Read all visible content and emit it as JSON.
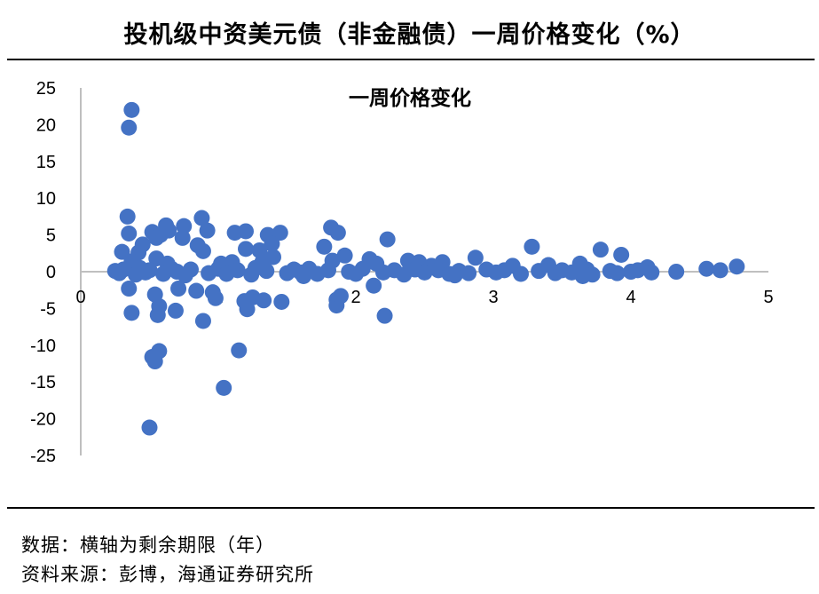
{
  "header": {
    "title": "投机级中资美元债（非金融债）一周价格变化（%）"
  },
  "footer": {
    "note": "数据：横轴为剩余期限（年）",
    "source": "资料来源：彭博，海通证券研究所"
  },
  "chart_data": {
    "type": "scatter",
    "title": "一周价格变化",
    "xlabel": "",
    "ylabel": "",
    "xlim": [
      0,
      5
    ],
    "ylim": [
      -25,
      25
    ],
    "x_ticks": [
      0,
      1,
      2,
      3,
      4,
      5
    ],
    "y_ticks": [
      25,
      20,
      15,
      10,
      5,
      0,
      -5,
      -10,
      -15,
      -20,
      -25
    ],
    "grid": false,
    "legend": "none",
    "marker_color": "#4472C4",
    "axis_color": "#BFBFBF",
    "points": [
      [
        0.37,
        22.0
      ],
      [
        0.35,
        19.6
      ],
      [
        0.34,
        7.5
      ],
      [
        0.35,
        5.2
      ],
      [
        0.52,
        5.4
      ],
      [
        0.58,
        5.0
      ],
      [
        0.55,
        4.6
      ],
      [
        0.62,
        6.3
      ],
      [
        0.64,
        5.6
      ],
      [
        0.75,
        6.2
      ],
      [
        0.74,
        4.6
      ],
      [
        0.88,
        7.3
      ],
      [
        0.92,
        5.6
      ],
      [
        0.85,
        3.6
      ],
      [
        0.89,
        2.8
      ],
      [
        0.55,
        1.8
      ],
      [
        0.45,
        3.7
      ],
      [
        0.42,
        2.6
      ],
      [
        0.3,
        2.7
      ],
      [
        0.37,
        1.4
      ],
      [
        0.63,
        1.1
      ],
      [
        1.12,
        5.3
      ],
      [
        1.2,
        5.5
      ],
      [
        1.36,
        5.0
      ],
      [
        1.45,
        5.3
      ],
      [
        1.39,
        3.8
      ],
      [
        1.3,
        2.9
      ],
      [
        1.2,
        3.1
      ],
      [
        1.4,
        2.0
      ],
      [
        1.32,
        1.3
      ],
      [
        1.1,
        1.3
      ],
      [
        1.02,
        1.1
      ],
      [
        1.77,
        3.4
      ],
      [
        1.82,
        6.0
      ],
      [
        1.87,
        5.3
      ],
      [
        1.92,
        2.2
      ],
      [
        1.83,
        1.5
      ],
      [
        2.1,
        1.7
      ],
      [
        2.23,
        4.4
      ],
      [
        2.15,
        1.1
      ],
      [
        2.38,
        1.5
      ],
      [
        2.46,
        1.3
      ],
      [
        2.55,
        0.8
      ],
      [
        2.63,
        1.3
      ],
      [
        2.87,
        1.9
      ],
      [
        3.28,
        3.4
      ],
      [
        3.14,
        0.8
      ],
      [
        3.4,
        0.9
      ],
      [
        3.63,
        1.1
      ],
      [
        3.78,
        3.0
      ],
      [
        3.93,
        2.3
      ],
      [
        4.12,
        0.6
      ],
      [
        4.55,
        0.4
      ],
      [
        4.65,
        0.2
      ],
      [
        4.77,
        0.7
      ],
      [
        0.35,
        -2.3
      ],
      [
        0.37,
        -5.6
      ],
      [
        0.54,
        -3.1
      ],
      [
        0.57,
        -4.7
      ],
      [
        0.56,
        -5.9
      ],
      [
        0.69,
        -5.3
      ],
      [
        0.71,
        -2.3
      ],
      [
        0.84,
        -2.6
      ],
      [
        0.89,
        -6.7
      ],
      [
        0.96,
        -2.8
      ],
      [
        0.98,
        -3.6
      ],
      [
        1.19,
        -4.0
      ],
      [
        1.21,
        -5.1
      ],
      [
        1.25,
        -3.5
      ],
      [
        1.33,
        -3.9
      ],
      [
        1.46,
        -4.1
      ],
      [
        1.86,
        -3.8
      ],
      [
        1.86,
        -4.6
      ],
      [
        1.89,
        -3.3
      ],
      [
        2.13,
        -1.9
      ],
      [
        2.21,
        -6.0
      ],
      [
        0.52,
        -11.6
      ],
      [
        0.57,
        -10.8
      ],
      [
        0.54,
        -12.2
      ],
      [
        1.15,
        -10.7
      ],
      [
        1.04,
        -15.8
      ],
      [
        0.5,
        -21.2
      ],
      [
        0.25,
        0.1
      ],
      [
        0.28,
        -0.2
      ],
      [
        0.31,
        0.3
      ],
      [
        0.4,
        -0.4
      ],
      [
        0.43,
        0.5
      ],
      [
        0.47,
        -0.1
      ],
      [
        0.5,
        0.2
      ],
      [
        0.6,
        -0.3
      ],
      [
        0.66,
        0.4
      ],
      [
        0.7,
        0.0
      ],
      [
        0.76,
        -0.5
      ],
      [
        0.8,
        0.3
      ],
      [
        0.93,
        -0.2
      ],
      [
        1.0,
        0.4
      ],
      [
        1.06,
        -0.3
      ],
      [
        1.14,
        0.2
      ],
      [
        1.24,
        -0.4
      ],
      [
        1.27,
        0.5
      ],
      [
        1.35,
        0.1
      ],
      [
        1.5,
        -0.2
      ],
      [
        1.55,
        0.3
      ],
      [
        1.6,
        -0.1
      ],
      [
        1.66,
        0.4
      ],
      [
        1.72,
        -0.3
      ],
      [
        1.8,
        0.2
      ],
      [
        1.95,
        0.0
      ],
      [
        2.0,
        -0.3
      ],
      [
        2.05,
        0.4
      ],
      [
        2.2,
        -0.1
      ],
      [
        2.28,
        0.2
      ],
      [
        2.35,
        -0.4
      ],
      [
        2.43,
        0.3
      ],
      [
        2.5,
        -0.1
      ],
      [
        2.6,
        0.2
      ],
      [
        2.68,
        -0.3
      ],
      [
        2.75,
        0.1
      ],
      [
        2.82,
        -0.2
      ],
      [
        2.95,
        0.3
      ],
      [
        3.02,
        -0.1
      ],
      [
        3.08,
        0.2
      ],
      [
        3.2,
        -0.3
      ],
      [
        3.33,
        0.1
      ],
      [
        3.45,
        -0.2
      ],
      [
        3.5,
        0.2
      ],
      [
        3.57,
        -0.1
      ],
      [
        3.68,
        0.3
      ],
      [
        3.72,
        -0.4
      ],
      [
        3.85,
        0.1
      ],
      [
        3.9,
        -0.2
      ],
      [
        4.0,
        0.0
      ],
      [
        4.05,
        0.2
      ],
      [
        4.15,
        -0.1
      ],
      [
        4.33,
        0.0
      ],
      [
        3.65,
        -0.6
      ],
      [
        2.72,
        -0.5
      ],
      [
        1.62,
        -0.6
      ]
    ]
  }
}
